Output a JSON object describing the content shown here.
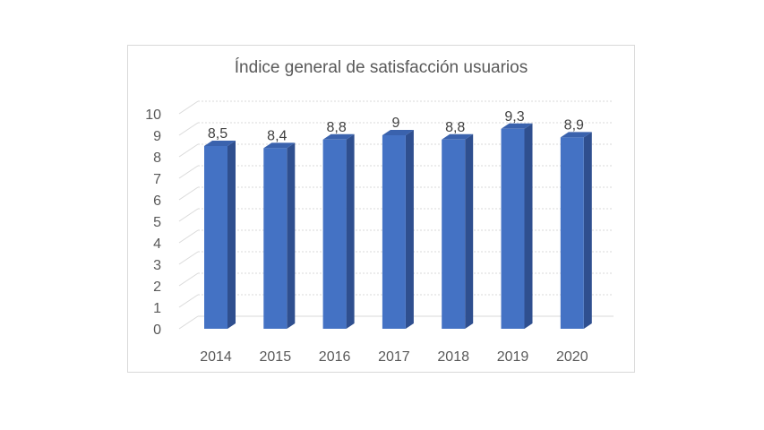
{
  "chart_data": {
    "type": "bar",
    "title": "Índice general de satisfacción usuarios",
    "categories": [
      "2014",
      "2015",
      "2016",
      "2017",
      "2018",
      "2019",
      "2020"
    ],
    "values": [
      8.5,
      8.4,
      8.8,
      9,
      8.8,
      9.3,
      8.9
    ],
    "data_labels": [
      "8,5",
      "8,4",
      "8,8",
      "9",
      "8,8",
      "9,3",
      "8,9"
    ],
    "y_ticks": [
      "0",
      "1",
      "2",
      "3",
      "4",
      "5",
      "6",
      "7",
      "8",
      "9",
      "10"
    ],
    "ylim": [
      0,
      10
    ],
    "grid": true,
    "style": "3d-column",
    "colors": {
      "bar_front": "#4472c4",
      "bar_side": "#2f4f8f",
      "bar_top": "#3a62ad",
      "grid": "#d9d9d9",
      "text": "#595959"
    }
  }
}
